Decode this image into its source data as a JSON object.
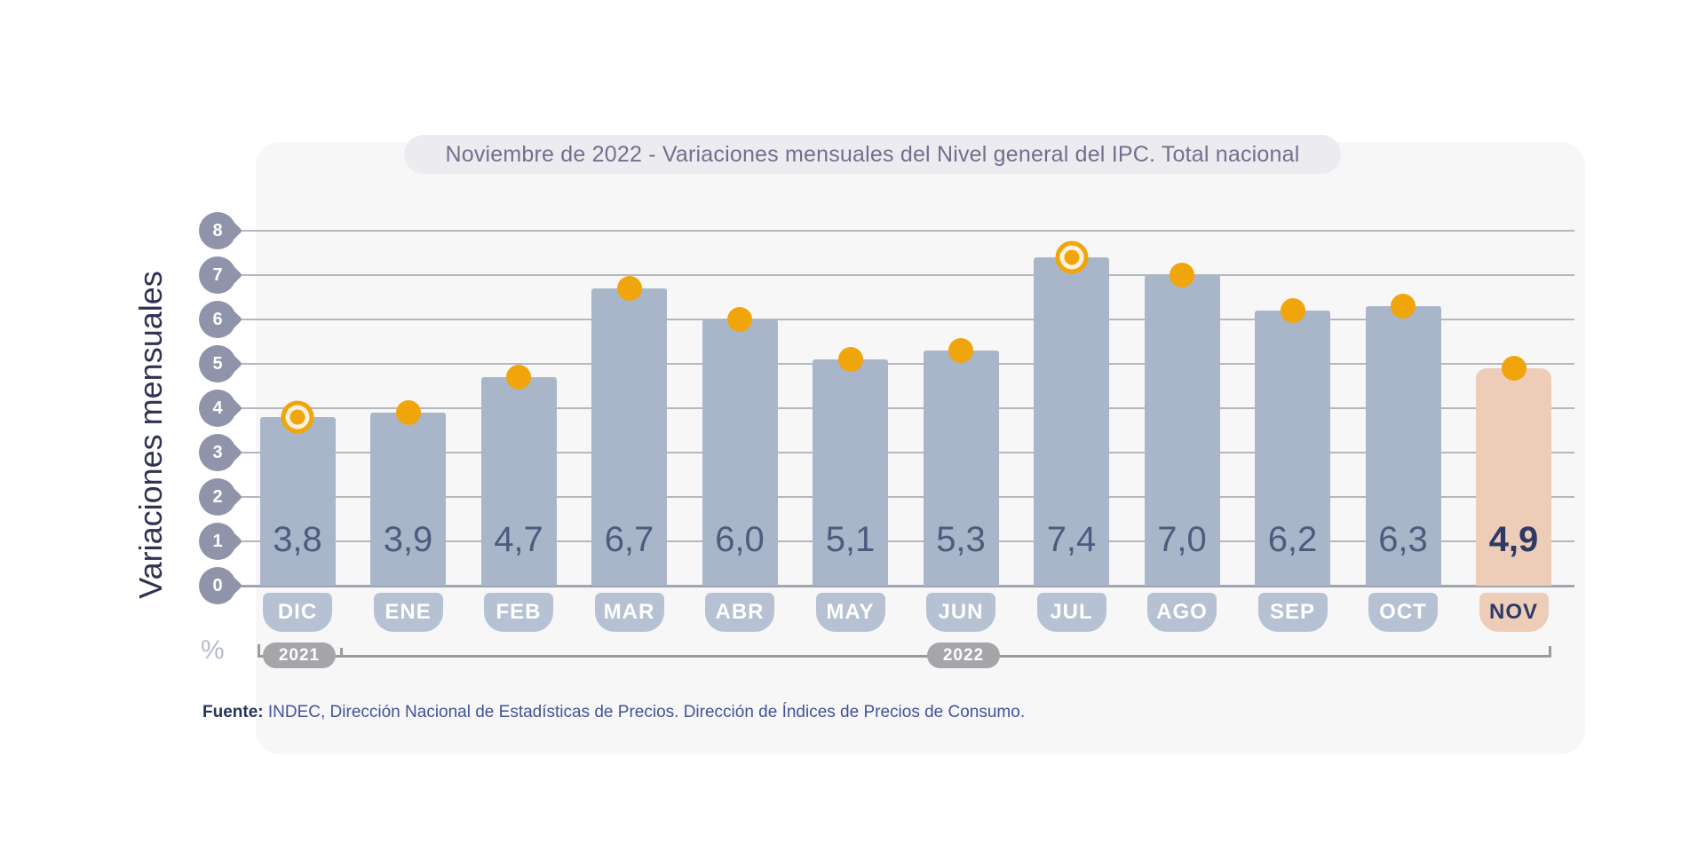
{
  "title": "Noviembre de 2022 - Variaciones mensuales del Nivel general del IPC. Total nacional",
  "y_axis": {
    "label": "Variaciones mensuales",
    "unit": "%"
  },
  "chart_data": {
    "type": "bar",
    "title": "Noviembre de 2022 - Variaciones mensuales del Nivel general del IPC. Total nacional",
    "ylabel": "Variaciones mensuales",
    "ylim": [
      0,
      8
    ],
    "y_ticks": [
      8,
      7,
      6,
      5,
      4,
      3,
      2,
      1,
      0
    ],
    "grid": "horizontal",
    "legend": false,
    "categories": [
      "DIC",
      "ENE",
      "FEB",
      "MAR",
      "ABR",
      "MAY",
      "JUN",
      "JUL",
      "AGO",
      "SEP",
      "OCT",
      "NOV"
    ],
    "values": [
      3.8,
      3.9,
      4.7,
      6.7,
      6.0,
      5.1,
      5.3,
      7.4,
      7.0,
      6.2,
      6.3,
      4.9
    ],
    "value_labels": [
      "3,8",
      "3,9",
      "4,7",
      "6,7",
      "6,0",
      "5,1",
      "5,3",
      "7,4",
      "7,0",
      "6,2",
      "6,3",
      "4,9"
    ],
    "highlighted_category": "NOV",
    "ringed_categories": [
      "DIC",
      "JUL"
    ],
    "year_groups": [
      {
        "label": "2021",
        "from": "DIC",
        "to": "DIC"
      },
      {
        "label": "2022",
        "from": "ENE",
        "to": "NOV"
      }
    ]
  },
  "footer": {
    "source_label": "Fuente:",
    "source_text": " INDEC, Dirección Nacional de Estadísticas de Precios. Dirección de Índices de Precios de Consumo."
  },
  "colors": {
    "bar": "#a9b6c9",
    "bar_highlight": "#edccb8",
    "dot": "#f0a50c",
    "value_text": "#4d5b7e",
    "value_text_highlight": "#2e3a66",
    "month_label_bg": "#b7c1d4",
    "month_label_text": "#ffffff",
    "gridline": "#b4b7bf",
    "axis_pin": "#9094ab",
    "panel_bg": "#f7f7f8",
    "title_pill_bg": "#ececf0",
    "title_text": "#70708e",
    "axis_title_text": "#2c3452",
    "bracket": "#9b9b9f",
    "year_pill_bg": "#a6a6aa",
    "source_text": "#43529a",
    "source_bold": "#27335f"
  }
}
